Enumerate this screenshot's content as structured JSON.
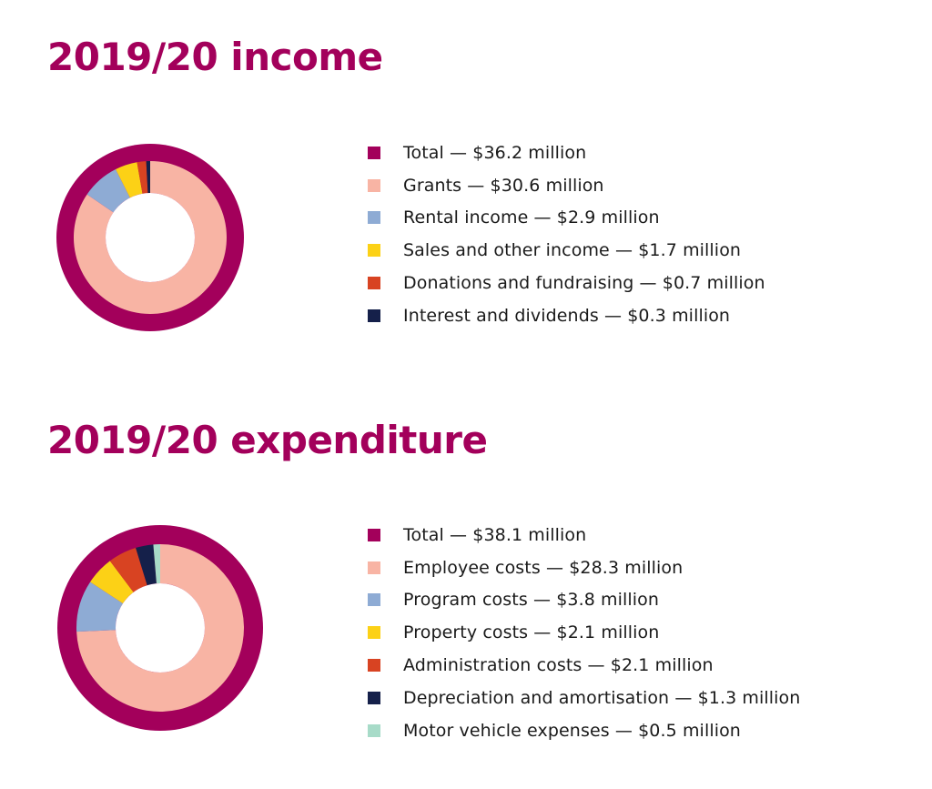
{
  "colors": {
    "total": "#a3005b",
    "title": "#a3005b",
    "grants": "#f8b4a4",
    "blue": "#8eabd4",
    "yellow": "#fcd116",
    "orange": "#d84322",
    "navy": "#15204a",
    "teal": "#a7dbc8"
  },
  "chart_data": [
    {
      "type": "pie",
      "title": "2019/20 income",
      "total": {
        "label": "Total — $36.2 million",
        "value": 36.2,
        "color_key": "total"
      },
      "slices": [
        {
          "label": "Grants — $30.6 million",
          "value": 30.6,
          "color_key": "grants"
        },
        {
          "label": "Rental income — $2.9 million",
          "value": 2.9,
          "color_key": "blue"
        },
        {
          "label": "Sales and other income — $1.7 million",
          "value": 1.7,
          "color_key": "yellow"
        },
        {
          "label": "Donations and fundraising — $0.7 million",
          "value": 0.7,
          "color_key": "orange"
        },
        {
          "label": "Interest and dividends — $0.3 million",
          "value": 0.3,
          "color_key": "navy"
        }
      ],
      "unit": "$ million"
    },
    {
      "type": "pie",
      "title": "2019/20 expenditure",
      "total": {
        "label": "Total — $38.1 million",
        "value": 38.1,
        "color_key": "total"
      },
      "slices": [
        {
          "label": "Employee costs — $28.3 million",
          "value": 28.3,
          "color_key": "grants"
        },
        {
          "label": "Program costs — $3.8 million",
          "value": 3.8,
          "color_key": "blue"
        },
        {
          "label": "Property costs — $2.1 million",
          "value": 2.1,
          "color_key": "yellow"
        },
        {
          "label": "Administration costs — $2.1 million",
          "value": 2.1,
          "color_key": "orange"
        },
        {
          "label": "Depreciation and amortisation — $1.3 million",
          "value": 1.3,
          "color_key": "navy"
        },
        {
          "label": "Motor vehicle expenses — $0.5 million",
          "value": 0.5,
          "color_key": "teal"
        }
      ],
      "unit": "$ million"
    }
  ]
}
